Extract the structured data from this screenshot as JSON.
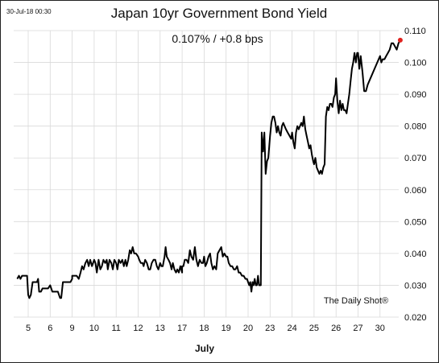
{
  "chart_data": {
    "type": "line",
    "title": "Japan 10yr Government Bond Yield",
    "subtitle": "0.107%  /  +0.8 bps",
    "timestamp": "30-Jul-18 00:30",
    "source": "The Daily Shot®",
    "xlabel": "July",
    "ylabel": "",
    "ylim": [
      0.02,
      0.11
    ],
    "y_ticks": [
      "0.020",
      "0.030",
      "0.040",
      "0.050",
      "0.060",
      "0.070",
      "0.080",
      "0.090",
      "0.100",
      "0.110"
    ],
    "x_ticks": [
      {
        "day": 5,
        "label": "5"
      },
      {
        "day": 6,
        "label": "6"
      },
      {
        "day": 9,
        "label": "9"
      },
      {
        "day": 10,
        "label": "10"
      },
      {
        "day": 11,
        "label": "11"
      },
      {
        "day": 12,
        "label": "12"
      },
      {
        "day": 13,
        "label": "13"
      },
      {
        "day": 17,
        "label": "17"
      },
      {
        "day": 18,
        "label": "18"
      },
      {
        "day": 19,
        "label": "19"
      },
      {
        "day": 20,
        "label": "20"
      },
      {
        "day": 23,
        "label": "23"
      },
      {
        "day": 24,
        "label": "24"
      },
      {
        "day": 25,
        "label": "25"
      },
      {
        "day": 26,
        "label": "26"
      },
      {
        "day": 27,
        "label": "27"
      },
      {
        "day": 30,
        "label": "30"
      }
    ],
    "grid": true,
    "line_color": "#000000",
    "last_point_color": "#e0221e",
    "series": [
      {
        "values": [
          [
            4.5,
            0.032
          ],
          [
            4.58,
            0.033
          ],
          [
            4.65,
            0.032
          ],
          [
            4.72,
            0.033
          ],
          [
            4.8,
            0.033
          ],
          [
            4.88,
            0.033
          ],
          [
            4.95,
            0.033
          ],
          [
            5.0,
            0.027
          ],
          [
            5.05,
            0.026
          ],
          [
            5.12,
            0.027
          ],
          [
            5.2,
            0.031
          ],
          [
            5.3,
            0.031
          ],
          [
            5.4,
            0.031
          ],
          [
            5.45,
            0.032
          ],
          [
            5.5,
            0.028
          ],
          [
            5.58,
            0.028
          ],
          [
            5.65,
            0.029
          ],
          [
            5.75,
            0.029
          ],
          [
            5.9,
            0.029
          ],
          [
            6.0,
            0.03
          ],
          [
            6.1,
            0.028
          ],
          [
            6.2,
            0.028
          ],
          [
            6.35,
            0.028
          ],
          [
            6.4,
            0.027
          ],
          [
            6.45,
            0.026
          ],
          [
            6.5,
            0.026
          ],
          [
            6.58,
            0.031
          ],
          [
            6.7,
            0.031
          ],
          [
            6.8,
            0.031
          ],
          [
            6.92,
            0.031
          ],
          [
            7.0,
            0.032
          ],
          [
            7.1,
            0.032
          ],
          [
            7.2,
            0.033
          ],
          [
            7.3,
            0.033
          ],
          [
            9.0,
            0.033
          ],
          [
            9.1,
            0.033
          ],
          [
            9.2,
            0.033
          ],
          [
            9.3,
            0.032
          ],
          [
            9.38,
            0.034
          ],
          [
            9.45,
            0.036
          ],
          [
            9.52,
            0.035
          ],
          [
            9.6,
            0.037
          ],
          [
            9.68,
            0.038
          ],
          [
            9.75,
            0.036
          ],
          [
            9.82,
            0.038
          ],
          [
            9.9,
            0.036
          ],
          [
            10.0,
            0.038
          ],
          [
            10.06,
            0.037
          ],
          [
            10.12,
            0.034
          ],
          [
            10.2,
            0.038
          ],
          [
            10.28,
            0.035
          ],
          [
            10.35,
            0.036
          ],
          [
            10.42,
            0.038
          ],
          [
            10.5,
            0.037
          ],
          [
            10.57,
            0.038
          ],
          [
            10.62,
            0.035
          ],
          [
            10.7,
            0.038
          ],
          [
            10.78,
            0.037
          ],
          [
            10.85,
            0.035
          ],
          [
            10.92,
            0.038
          ],
          [
            11.0,
            0.037
          ],
          [
            11.06,
            0.035
          ],
          [
            11.12,
            0.038
          ],
          [
            11.2,
            0.037
          ],
          [
            11.28,
            0.038
          ],
          [
            11.35,
            0.036
          ],
          [
            11.42,
            0.038
          ],
          [
            11.48,
            0.036
          ],
          [
            11.55,
            0.038
          ],
          [
            11.62,
            0.041
          ],
          [
            11.68,
            0.04
          ],
          [
            11.75,
            0.042
          ],
          [
            11.82,
            0.04
          ],
          [
            11.9,
            0.04
          ],
          [
            12.0,
            0.039
          ],
          [
            12.05,
            0.038
          ],
          [
            12.12,
            0.037
          ],
          [
            12.2,
            0.037
          ],
          [
            12.25,
            0.036
          ],
          [
            12.32,
            0.038
          ],
          [
            12.4,
            0.037
          ],
          [
            12.48,
            0.035
          ],
          [
            12.55,
            0.035
          ],
          [
            12.62,
            0.037
          ],
          [
            12.7,
            0.038
          ],
          [
            12.78,
            0.038
          ],
          [
            12.85,
            0.036
          ],
          [
            12.92,
            0.035
          ],
          [
            13.0,
            0.037
          ],
          [
            13.06,
            0.036
          ],
          [
            13.12,
            0.036
          ],
          [
            13.2,
            0.039
          ],
          [
            13.25,
            0.042
          ],
          [
            13.3,
            0.039
          ],
          [
            13.38,
            0.038
          ],
          [
            13.45,
            0.037
          ],
          [
            13.52,
            0.035
          ],
          [
            13.58,
            0.037
          ],
          [
            13.65,
            0.035
          ],
          [
            13.72,
            0.034
          ],
          [
            13.78,
            0.035
          ],
          [
            13.85,
            0.034
          ],
          [
            13.92,
            0.036
          ],
          [
            14.0,
            0.034
          ],
          [
            17.0,
            0.036
          ],
          [
            17.06,
            0.036
          ],
          [
            17.12,
            0.038
          ],
          [
            17.2,
            0.038
          ],
          [
            17.28,
            0.037
          ],
          [
            17.35,
            0.041
          ],
          [
            17.42,
            0.039
          ],
          [
            17.5,
            0.038
          ],
          [
            17.58,
            0.042
          ],
          [
            17.65,
            0.038
          ],
          [
            17.72,
            0.036
          ],
          [
            17.8,
            0.038
          ],
          [
            17.88,
            0.037
          ],
          [
            17.95,
            0.037
          ],
          [
            18.0,
            0.039
          ],
          [
            18.06,
            0.036
          ],
          [
            18.12,
            0.037
          ],
          [
            18.2,
            0.039
          ],
          [
            18.27,
            0.04
          ],
          [
            18.33,
            0.037
          ],
          [
            18.4,
            0.035
          ],
          [
            18.47,
            0.036
          ],
          [
            18.55,
            0.035
          ],
          [
            18.62,
            0.04
          ],
          [
            18.7,
            0.041
          ],
          [
            18.78,
            0.042
          ],
          [
            18.85,
            0.039
          ],
          [
            18.92,
            0.04
          ],
          [
            19.0,
            0.039
          ],
          [
            19.06,
            0.039
          ],
          [
            19.12,
            0.037
          ],
          [
            19.2,
            0.036
          ],
          [
            19.28,
            0.036
          ],
          [
            19.35,
            0.035
          ],
          [
            19.42,
            0.035
          ],
          [
            19.5,
            0.036
          ],
          [
            19.57,
            0.034
          ],
          [
            19.64,
            0.034
          ],
          [
            19.72,
            0.033
          ],
          [
            19.8,
            0.033
          ],
          [
            19.88,
            0.032
          ],
          [
            19.95,
            0.032
          ],
          [
            20.0,
            0.031
          ],
          [
            20.05,
            0.03
          ],
          [
            20.1,
            0.031
          ],
          [
            20.15,
            0.028
          ],
          [
            20.2,
            0.031
          ],
          [
            20.25,
            0.03
          ],
          [
            20.3,
            0.032
          ],
          [
            20.35,
            0.03
          ],
          [
            20.4,
            0.03
          ],
          [
            20.45,
            0.033
          ],
          [
            20.5,
            0.03
          ],
          [
            20.55,
            0.03
          ],
          [
            20.58,
            0.03
          ],
          [
            20.62,
            0.078
          ],
          [
            20.68,
            0.072
          ],
          [
            20.74,
            0.078
          ],
          [
            20.8,
            0.065
          ],
          [
            20.86,
            0.069
          ],
          [
            20.92,
            0.07
          ],
          [
            23.0,
            0.077
          ],
          [
            23.06,
            0.081
          ],
          [
            23.12,
            0.083
          ],
          [
            23.18,
            0.083
          ],
          [
            23.24,
            0.081
          ],
          [
            23.3,
            0.078
          ],
          [
            23.36,
            0.08
          ],
          [
            23.42,
            0.078
          ],
          [
            23.48,
            0.077
          ],
          [
            23.54,
            0.08
          ],
          [
            23.6,
            0.081
          ],
          [
            23.66,
            0.08
          ],
          [
            23.72,
            0.079
          ],
          [
            23.8,
            0.078
          ],
          [
            23.88,
            0.077
          ],
          [
            23.96,
            0.076
          ],
          [
            24.0,
            0.078
          ],
          [
            24.06,
            0.075
          ],
          [
            24.12,
            0.073
          ],
          [
            24.18,
            0.078
          ],
          [
            24.24,
            0.08
          ],
          [
            24.3,
            0.079
          ],
          [
            24.36,
            0.08
          ],
          [
            24.42,
            0.081
          ],
          [
            24.48,
            0.08
          ],
          [
            24.54,
            0.083
          ],
          [
            24.6,
            0.079
          ],
          [
            24.66,
            0.077
          ],
          [
            24.72,
            0.075
          ],
          [
            24.78,
            0.073
          ],
          [
            24.84,
            0.074
          ],
          [
            24.9,
            0.071
          ],
          [
            24.96,
            0.069
          ],
          [
            25.0,
            0.068
          ],
          [
            25.06,
            0.07
          ],
          [
            25.12,
            0.067
          ],
          [
            25.18,
            0.066
          ],
          [
            25.24,
            0.065
          ],
          [
            25.3,
            0.066
          ],
          [
            25.36,
            0.065
          ],
          [
            25.42,
            0.067
          ],
          [
            25.48,
            0.068
          ],
          [
            25.54,
            0.083
          ],
          [
            25.6,
            0.086
          ],
          [
            25.66,
            0.085
          ],
          [
            25.72,
            0.087
          ],
          [
            25.78,
            0.087
          ],
          [
            25.84,
            0.086
          ],
          [
            25.9,
            0.089
          ],
          [
            25.96,
            0.09
          ],
          [
            26.0,
            0.095
          ],
          [
            26.06,
            0.088
          ],
          [
            26.12,
            0.084
          ],
          [
            26.18,
            0.088
          ],
          [
            26.24,
            0.085
          ],
          [
            26.3,
            0.087
          ],
          [
            26.36,
            0.085
          ],
          [
            26.42,
            0.085
          ],
          [
            26.48,
            0.084
          ],
          [
            26.54,
            0.087
          ],
          [
            26.6,
            0.09
          ],
          [
            26.66,
            0.094
          ],
          [
            26.72,
            0.098
          ],
          [
            26.78,
            0.1
          ],
          [
            26.84,
            0.103
          ],
          [
            26.9,
            0.1
          ],
          [
            26.96,
            0.103
          ],
          [
            27.0,
            0.103
          ],
          [
            27.06,
            0.098
          ],
          [
            27.12,
            0.102
          ],
          [
            27.2,
            0.097
          ],
          [
            27.28,
            0.091
          ],
          [
            27.36,
            0.091
          ],
          [
            27.44,
            0.093
          ],
          [
            30.0,
            0.102
          ],
          [
            30.06,
            0.1
          ],
          [
            30.12,
            0.101
          ],
          [
            30.2,
            0.101
          ],
          [
            30.28,
            0.102
          ],
          [
            30.36,
            0.103
          ],
          [
            30.44,
            0.104
          ],
          [
            30.52,
            0.106
          ],
          [
            30.6,
            0.106
          ],
          [
            30.68,
            0.105
          ],
          [
            30.76,
            0.104
          ],
          [
            30.84,
            0.106
          ],
          [
            30.92,
            0.107
          ]
        ]
      }
    ]
  }
}
